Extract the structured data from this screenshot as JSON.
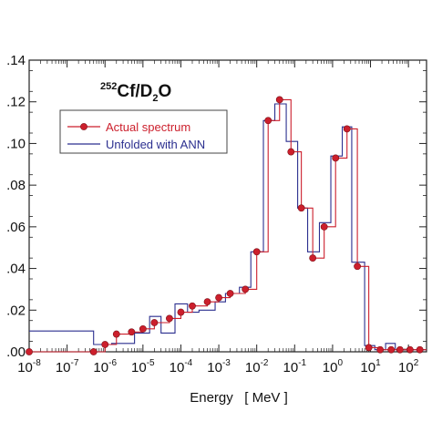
{
  "chart_data": {
    "type": "line",
    "title": "",
    "annotation": {
      "prefix": "252",
      "main": "Cf/D",
      "sub": "2",
      "suffix": "O"
    },
    "xlabel": "Energy   [ MeV ]",
    "ylabel": "",
    "xscale": "log",
    "xlim": [
      1e-08,
      300
    ],
    "ylim": [
      0,
      0.14
    ],
    "yticks": [
      0,
      0.02,
      0.04,
      0.06,
      0.08,
      0.1,
      0.12,
      0.14
    ],
    "ytick_labels": [
      ".00",
      ".02",
      ".04",
      ".06",
      ".08",
      ".10",
      ".12",
      ".14"
    ],
    "xticks": [
      {
        "base": "10",
        "exp": "-8"
      },
      {
        "base": "10",
        "exp": "-7"
      },
      {
        "base": "10",
        "exp": "-6"
      },
      {
        "base": "10",
        "exp": "-5"
      },
      {
        "base": "10",
        "exp": "-4"
      },
      {
        "base": "10",
        "exp": "-3"
      },
      {
        "base": "10",
        "exp": "-2"
      },
      {
        "base": "10",
        "exp": "-1"
      },
      {
        "base": "10",
        "exp": "0"
      },
      {
        "base": "10",
        "exp": "1"
      },
      {
        "base": "10",
        "exp": "2"
      }
    ],
    "grid": false,
    "legend_position": "top-left",
    "series": [
      {
        "name": "Actual spectrum",
        "color": "#cc1f2c",
        "style": "step-with-markers",
        "marker": "circle",
        "points": [
          {
            "x": 1e-08,
            "y": 0.0
          },
          {
            "x": 5e-07,
            "y": 0.0
          },
          {
            "x": 1e-06,
            "y": 0.0035
          },
          {
            "x": 2e-06,
            "y": 0.0085
          },
          {
            "x": 5e-06,
            "y": 0.0095
          },
          {
            "x": 1e-05,
            "y": 0.011
          },
          {
            "x": 2e-05,
            "y": 0.014
          },
          {
            "x": 5e-05,
            "y": 0.016
          },
          {
            "x": 0.0001,
            "y": 0.019
          },
          {
            "x": 0.0002,
            "y": 0.022
          },
          {
            "x": 0.0005,
            "y": 0.024
          },
          {
            "x": 0.001,
            "y": 0.026
          },
          {
            "x": 0.002,
            "y": 0.028
          },
          {
            "x": 0.005,
            "y": 0.03
          },
          {
            "x": 0.01,
            "y": 0.048
          },
          {
            "x": 0.02,
            "y": 0.111
          },
          {
            "x": 0.04,
            "y": 0.121
          },
          {
            "x": 0.08,
            "y": 0.096
          },
          {
            "x": 0.15,
            "y": 0.069
          },
          {
            "x": 0.3,
            "y": 0.045
          },
          {
            "x": 0.6,
            "y": 0.06
          },
          {
            "x": 1.2,
            "y": 0.093
          },
          {
            "x": 2.4,
            "y": 0.107
          },
          {
            "x": 4.5,
            "y": 0.041
          },
          {
            "x": 9,
            "y": 0.002
          },
          {
            "x": 18,
            "y": 0.001
          },
          {
            "x": 35,
            "y": 0.001
          },
          {
            "x": 60,
            "y": 0.001
          },
          {
            "x": 110,
            "y": 0.001
          },
          {
            "x": 200,
            "y": 0.001
          }
        ]
      },
      {
        "name": "Unfolded with ANN",
        "color": "#2b2f8f",
        "style": "step",
        "steps": [
          {
            "x0": 1e-08,
            "x1": 5e-07,
            "y": 0.01
          },
          {
            "x0": 5e-07,
            "x1": 1.5e-06,
            "y": 0.0035
          },
          {
            "x0": 1.5e-06,
            "x1": 6e-06,
            "y": 0.004
          },
          {
            "x0": 6e-06,
            "x1": 1.5e-05,
            "y": 0.009
          },
          {
            "x0": 1.5e-05,
            "x1": 3e-05,
            "y": 0.017
          },
          {
            "x0": 3e-05,
            "x1": 7e-05,
            "y": 0.009
          },
          {
            "x0": 7e-05,
            "x1": 0.00015,
            "y": 0.023
          },
          {
            "x0": 0.00015,
            "x1": 0.0003,
            "y": 0.019
          },
          {
            "x0": 0.0003,
            "x1": 0.0008,
            "y": 0.02
          },
          {
            "x0": 0.0008,
            "x1": 0.0015,
            "y": 0.024
          },
          {
            "x0": 0.0015,
            "x1": 0.0035,
            "y": 0.028
          },
          {
            "x0": 0.0035,
            "x1": 0.007,
            "y": 0.031
          },
          {
            "x0": 0.007,
            "x1": 0.015,
            "y": 0.048
          },
          {
            "x0": 0.015,
            "x1": 0.03,
            "y": 0.111
          },
          {
            "x0": 0.03,
            "x1": 0.06,
            "y": 0.119
          },
          {
            "x0": 0.06,
            "x1": 0.12,
            "y": 0.101
          },
          {
            "x0": 0.12,
            "x1": 0.22,
            "y": 0.069
          },
          {
            "x0": 0.22,
            "x1": 0.45,
            "y": 0.048
          },
          {
            "x0": 0.45,
            "x1": 0.9,
            "y": 0.062
          },
          {
            "x0": 0.9,
            "x1": 1.8,
            "y": 0.094
          },
          {
            "x0": 1.8,
            "x1": 3.2,
            "y": 0.108
          },
          {
            "x0": 3.2,
            "x1": 7,
            "y": 0.043
          },
          {
            "x0": 7,
            "x1": 13,
            "y": 0.003
          },
          {
            "x0": 13,
            "x1": 25,
            "y": 0.001
          },
          {
            "x0": 25,
            "x1": 45,
            "y": 0.004
          },
          {
            "x0": 45,
            "x1": 80,
            "y": 0.001
          },
          {
            "x0": 80,
            "x1": 300,
            "y": 0.001
          }
        ]
      }
    ]
  }
}
